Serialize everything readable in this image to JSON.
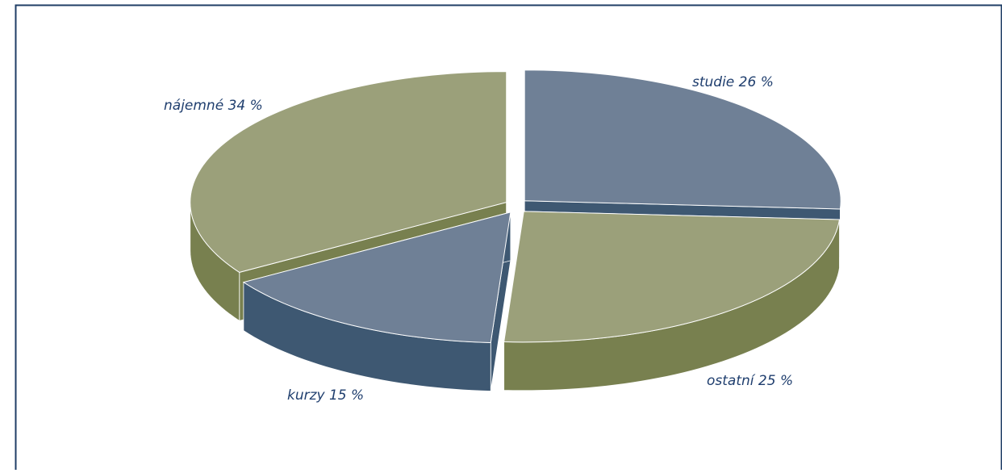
{
  "chart_data": {
    "type": "pie",
    "title": "",
    "slices": [
      {
        "label": "studie 26 %",
        "value": 26,
        "color": "#6F8096",
        "side_color": "#3E5872"
      },
      {
        "label": "ostatní 25 %",
        "value": 25,
        "color": "#9BA07A",
        "side_color": "#78804F"
      },
      {
        "label": "kurzy 15 %",
        "value": 15,
        "color": "#6F8096",
        "side_color": "#3E5872"
      },
      {
        "label": "nájemné 34 %",
        "value": 34,
        "color": "#9BA07A",
        "side_color": "#78804F"
      }
    ],
    "label_color": "#1F3E6E",
    "border_color": "#1F3E66"
  }
}
